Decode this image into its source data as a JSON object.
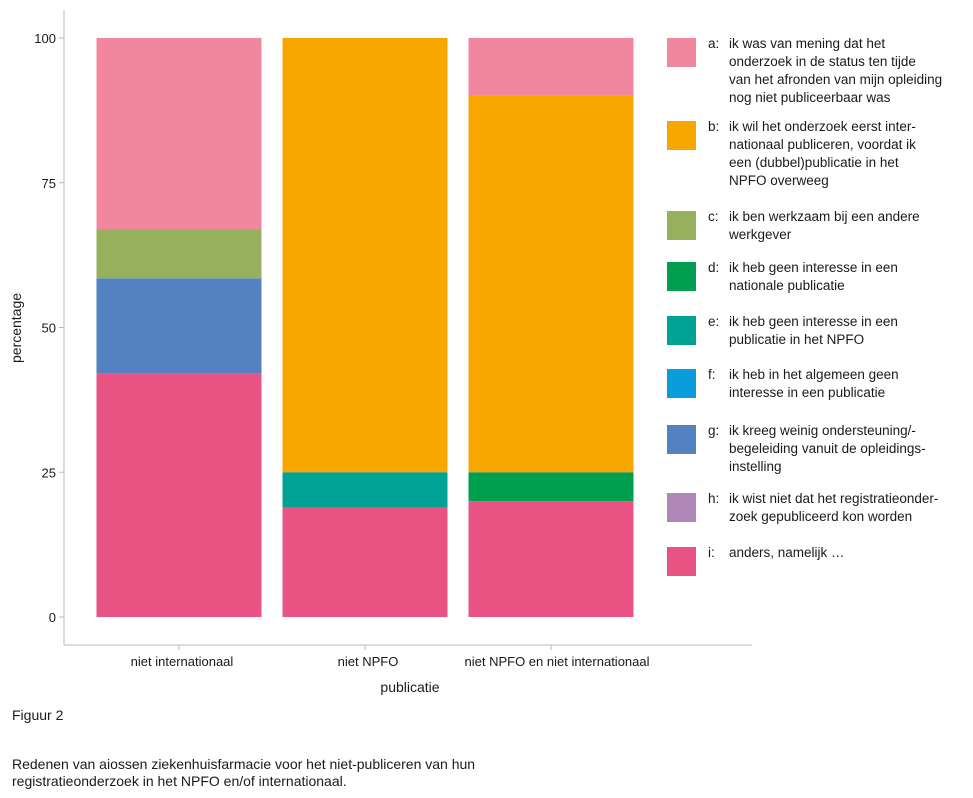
{
  "chart_data": {
    "type": "bar",
    "stacked": true,
    "xlabel": "publicatie",
    "ylabel": "percentage",
    "ylim": [
      0,
      100
    ],
    "yticks": [
      0,
      25,
      50,
      75,
      100
    ],
    "categories": [
      "niet internationaal",
      "niet NPFO",
      "niet NPFO en niet internationaal"
    ],
    "series": [
      {
        "key": "i",
        "letter": "i:",
        "name": "anders, namelijk …",
        "color": "#e85384",
        "values": [
          42,
          19,
          20
        ]
      },
      {
        "key": "h",
        "letter": "h:",
        "name": "ik wist niet dat het registratieonder-zoek gepubliceerd kon worden",
        "lines": [
          "ik wist niet dat het registratieonder-",
          "zoek gepubliceerd kon worden"
        ],
        "color": "#ae87b6",
        "values": [
          0,
          0,
          0
        ]
      },
      {
        "key": "g",
        "letter": "g:",
        "name": "ik kreeg weinig ondersteuning/-begeleiding vanuit de opleidings-instelling",
        "lines": [
          "ik kreeg weinig ondersteuning/-",
          "begeleiding vanuit de opleidings-",
          "instelling"
        ],
        "color": "#5282c1",
        "values": [
          16.5,
          0,
          0
        ]
      },
      {
        "key": "f",
        "letter": "f:",
        "name": "ik heb in het algemeen geen interesse in een publicatie",
        "lines": [
          "ik heb in het algemeen geen",
          "interesse in een publicatie"
        ],
        "color": "#099ddb",
        "values": [
          0,
          0,
          0
        ]
      },
      {
        "key": "e",
        "letter": "e:",
        "name": "ik heb geen interesse in een publicatie in het NPFO",
        "lines": [
          "ik heb geen interesse in een",
          "publicatie in het NPFO"
        ],
        "color": "#00a294",
        "values": [
          0,
          6,
          0
        ]
      },
      {
        "key": "d",
        "letter": "d:",
        "name": "ik heb geen interesse in een nationale publicatie",
        "lines": [
          "ik heb geen interesse in een",
          "nationale publicatie"
        ],
        "color": "#009f50",
        "values": [
          0,
          0,
          5
        ]
      },
      {
        "key": "c",
        "letter": "c:",
        "name": "ik ben werkzaam bij een andere werkgever",
        "lines": [
          "ik ben werkzaam bij een andere",
          "werkgever"
        ],
        "color": "#96b05e",
        "values": [
          8.5,
          0,
          0
        ]
      },
      {
        "key": "b",
        "letter": "b:",
        "name": "ik wil het onderzoek eerst inter-nationaal publiceren, voordat ik een (dubbel)publicatie in het NPFO overweeg",
        "lines": [
          "ik wil het onderzoek eerst inter-",
          "nationaal publiceren, voordat ik",
          "een (dubbel)publicatie in het",
          "NPFO overweeg"
        ],
        "color": "#f7a600",
        "values": [
          0,
          75,
          65
        ]
      },
      {
        "key": "a",
        "letter": "a:",
        "name": "ik was van mening dat het onderzoek in de status ten tijde van het afronden van mijn opleiding nog niet publiceerbaar was",
        "lines": [
          "ik was van mening dat het",
          "onderzoek in de status ten tijde",
          "van het afronden van mijn opleiding",
          "nog niet publiceerbaar was"
        ],
        "color": "#f0879e",
        "values": [
          33,
          0,
          10
        ]
      }
    ],
    "legend_order": [
      "a",
      "b",
      "c",
      "d",
      "e",
      "f",
      "g",
      "h",
      "i"
    ],
    "legend_position": "right"
  },
  "figure_label": "Figuur 2",
  "caption": "Redenen van aiossen ziekenhuisfarmacie voor het niet-publiceren van hun registratieonderzoek in het NPFO en/of internationaal."
}
